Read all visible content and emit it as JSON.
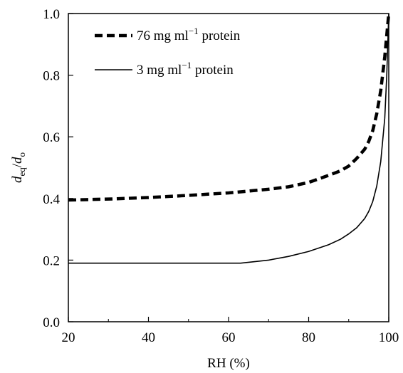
{
  "chart_data": {
    "type": "line",
    "xlabel": "RH (%)",
    "ylabel_main": "d",
    "ylabel_sub1": "eq",
    "ylabel_sep": "/",
    "ylabel_sub2": "o",
    "xlim": [
      20,
      100
    ],
    "ylim": [
      0.0,
      1.0
    ],
    "x_ticks": [
      "20",
      "40",
      "60",
      "80",
      "100"
    ],
    "y_ticks": [
      "0.0",
      "0.2",
      "0.4",
      "0.6",
      "0.8",
      "1.0"
    ],
    "grid": false,
    "legend_position": "top-left",
    "series": [
      {
        "name_prefix": "76 mg ml",
        "name_sup": "−1",
        "name_suffix": " protein",
        "style": "dashed",
        "color": "#000000",
        "points": [
          [
            20,
            0.395
          ],
          [
            30,
            0.398
          ],
          [
            40,
            0.403
          ],
          [
            50,
            0.41
          ],
          [
            60,
            0.418
          ],
          [
            70,
            0.43
          ],
          [
            75,
            0.438
          ],
          [
            80,
            0.452
          ],
          [
            85,
            0.475
          ],
          [
            88,
            0.49
          ],
          [
            90,
            0.505
          ],
          [
            92,
            0.53
          ],
          [
            94,
            0.56
          ],
          [
            95,
            0.585
          ],
          [
            96,
            0.62
          ],
          [
            97,
            0.675
          ],
          [
            98,
            0.75
          ],
          [
            99,
            0.86
          ],
          [
            100,
            1.0
          ]
        ]
      },
      {
        "name_prefix": "3 mg ml",
        "name_sup": "−1",
        "name_suffix": " protein",
        "style": "solid",
        "color": "#000000",
        "points": [
          [
            20,
            0.19
          ],
          [
            40,
            0.19
          ],
          [
            55,
            0.19
          ],
          [
            63,
            0.19
          ],
          [
            70,
            0.2
          ],
          [
            75,
            0.212
          ],
          [
            80,
            0.228
          ],
          [
            85,
            0.25
          ],
          [
            88,
            0.268
          ],
          [
            90,
            0.285
          ],
          [
            92,
            0.305
          ],
          [
            94,
            0.335
          ],
          [
            95,
            0.358
          ],
          [
            96,
            0.39
          ],
          [
            97,
            0.44
          ],
          [
            98,
            0.52
          ],
          [
            99,
            0.66
          ],
          [
            99.5,
            0.8
          ],
          [
            100,
            1.0
          ]
        ]
      }
    ]
  }
}
